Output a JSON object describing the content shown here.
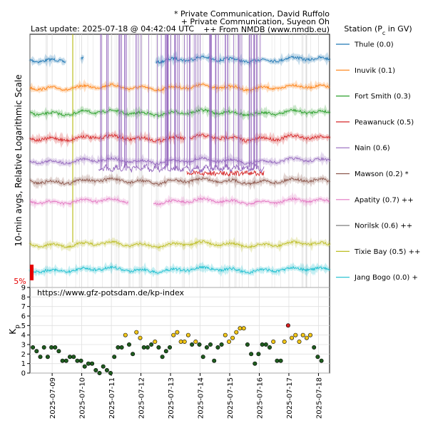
{
  "header": {
    "last_update": "Last update: 2025-07-18 @ 04:42:04 UTC",
    "credit_lines": [
      "* Private Communication, David Ruffolo",
      "+ Private Communication, Suyeon Oh",
      "++ From NMDB (www.nmdb.eu)"
    ]
  },
  "chart_data": [
    {
      "type": "line",
      "ylabel": "10-min avgs, Relative Logarithmic Scale",
      "scale_bar_label": "5%",
      "legend_title": "Station (Pc in GV)",
      "legend_placement": "right",
      "grid": true,
      "x_range": [
        "2025-07-08T06:00",
        "2025-07-18T09:00"
      ],
      "series": [
        {
          "name": "Thule (0.0)",
          "color": "#1f77b4",
          "level": 0.9,
          "noise": 0.01,
          "gaps": [
            [
              0.12,
              0.17
            ],
            [
              0.18,
              0.42
            ]
          ]
        },
        {
          "name": "Inuvik (0.1)",
          "color": "#ff7f0e",
          "level": 0.79,
          "noise": 0.008,
          "gaps": []
        },
        {
          "name": "Fort Smith (0.3)",
          "color": "#2ca02c",
          "level": 0.69,
          "noise": 0.009,
          "gaps": []
        },
        {
          "name": "Peawanuck (0.5)",
          "color": "#d62728",
          "level": 0.59,
          "noise": 0.011,
          "gaps": [
            [
              0.52,
              0.53
            ]
          ]
        },
        {
          "name": "Nain (0.6)",
          "color": "#9467bd",
          "level": 0.5,
          "noise": 0.009,
          "gaps": []
        },
        {
          "name": "Mawson (0.2) *",
          "color": "#8c564b",
          "level": 0.42,
          "noise": 0.01,
          "gaps": []
        },
        {
          "name": "Apatity (0.7) ++",
          "color": "#e377c2",
          "level": 0.34,
          "noise": 0.008,
          "gaps": [
            [
              0.33,
              0.41
            ]
          ]
        },
        {
          "name": "Norilsk (0.6) ++",
          "color": "#7f7f7f",
          "level": 0.26,
          "noise": 0.006,
          "gaps": [
            [
              0.0,
              1.0
            ]
          ]
        },
        {
          "name": "Tixie Bay (0.5) ++",
          "color": "#bcbd22",
          "level": 0.17,
          "noise": 0.008,
          "gaps": []
        },
        {
          "name": "Jang Bogo (0.0) +",
          "color": "#17becf",
          "level": 0.07,
          "noise": 0.009,
          "gaps": []
        }
      ]
    },
    {
      "type": "scatter",
      "title": "https://www.gfz-potsdam.de/kp-index",
      "ylabel": "Kp",
      "ylim": [
        0,
        9
      ],
      "yticks": [
        0,
        1,
        2,
        3,
        4,
        5,
        6,
        7,
        8,
        9
      ],
      "xticks": [
        "2025-07-09",
        "2025-07-10",
        "2025-07-11",
        "2025-07-12",
        "2025-07-13",
        "2025-07-14",
        "2025-07-15",
        "2025-07-16",
        "2025-07-17",
        "2025-07-18"
      ],
      "x_range": [
        "2025-07-08T06:00",
        "2025-07-18T09:00"
      ],
      "color_key": {
        "low": "#1e5c1e",
        "mid": "#f2c618",
        "high": "#d62020"
      },
      "points": [
        {
          "t": 0.1,
          "kp": 2.7
        },
        {
          "t": 0.225,
          "kp": 2.3
        },
        {
          "t": 0.35,
          "kp": 1.7
        },
        {
          "t": 0.475,
          "kp": 2.7
        },
        {
          "t": 0.6,
          "kp": 1.7
        },
        {
          "t": 0.725,
          "kp": 2.7
        },
        {
          "t": 0.85,
          "kp": 2.7
        },
        {
          "t": 0.975,
          "kp": 2.3
        },
        {
          "t": 1.1,
          "kp": 1.3
        },
        {
          "t": 1.225,
          "kp": 1.3
        },
        {
          "t": 1.35,
          "kp": 1.7
        },
        {
          "t": 1.475,
          "kp": 1.7
        },
        {
          "t": 1.6,
          "kp": 1.3
        },
        {
          "t": 1.725,
          "kp": 1.3
        },
        {
          "t": 1.85,
          "kp": 0.7
        },
        {
          "t": 1.975,
          "kp": 1.0
        },
        {
          "t": 2.1,
          "kp": 1.0
        },
        {
          "t": 2.225,
          "kp": 0.3
        },
        {
          "t": 2.35,
          "kp": 0.0
        },
        {
          "t": 2.475,
          "kp": 0.7
        },
        {
          "t": 2.6,
          "kp": 0.3
        },
        {
          "t": 2.725,
          "kp": 0.0
        },
        {
          "t": 2.85,
          "kp": 1.7
        },
        {
          "t": 2.975,
          "kp": 2.7
        },
        {
          "t": 3.1,
          "kp": 2.7
        },
        {
          "t": 3.225,
          "kp": 4.0
        },
        {
          "t": 3.35,
          "kp": 3.0
        },
        {
          "t": 3.475,
          "kp": 2.0
        },
        {
          "t": 3.6,
          "kp": 4.3
        },
        {
          "t": 3.725,
          "kp": 3.7
        },
        {
          "t": 3.85,
          "kp": 2.7
        },
        {
          "t": 3.975,
          "kp": 2.7
        },
        {
          "t": 4.1,
          "kp": 3.0
        },
        {
          "t": 4.225,
          "kp": 3.3
        },
        {
          "t": 4.35,
          "kp": 2.7
        },
        {
          "t": 4.475,
          "kp": 1.7
        },
        {
          "t": 4.6,
          "kp": 2.3
        },
        {
          "t": 4.725,
          "kp": 2.7
        },
        {
          "t": 4.85,
          "kp": 4.0
        },
        {
          "t": 4.975,
          "kp": 4.3
        },
        {
          "t": 5.1,
          "kp": 3.3
        },
        {
          "t": 5.225,
          "kp": 3.3
        },
        {
          "t": 5.35,
          "kp": 4.0
        },
        {
          "t": 5.475,
          "kp": 3.0
        },
        {
          "t": 5.6,
          "kp": 3.3
        },
        {
          "t": 5.725,
          "kp": 3.0
        },
        {
          "t": 5.85,
          "kp": 1.7
        },
        {
          "t": 5.975,
          "kp": 2.7
        },
        {
          "t": 6.1,
          "kp": 3.0
        },
        {
          "t": 6.225,
          "kp": 1.3
        },
        {
          "t": 6.35,
          "kp": 2.7
        },
        {
          "t": 6.475,
          "kp": 3.0
        },
        {
          "t": 6.6,
          "kp": 4.0
        },
        {
          "t": 6.725,
          "kp": 3.3
        },
        {
          "t": 6.85,
          "kp": 3.7
        },
        {
          "t": 6.975,
          "kp": 4.3
        },
        {
          "t": 7.1,
          "kp": 4.7
        },
        {
          "t": 7.225,
          "kp": 4.7
        },
        {
          "t": 7.35,
          "kp": 3.0
        },
        {
          "t": 7.475,
          "kp": 2.0
        },
        {
          "t": 7.6,
          "kp": 1.0
        },
        {
          "t": 7.725,
          "kp": 2.0
        },
        {
          "t": 7.85,
          "kp": 3.0
        },
        {
          "t": 7.975,
          "kp": 3.0
        },
        {
          "t": 8.1,
          "kp": 2.7
        },
        {
          "t": 8.225,
          "kp": 3.3
        },
        {
          "t": 8.35,
          "kp": 1.3
        },
        {
          "t": 8.475,
          "kp": 1.3
        },
        {
          "t": 8.6,
          "kp": 3.3
        },
        {
          "t": 8.725,
          "kp": 5.0
        },
        {
          "t": 8.85,
          "kp": 3.7
        },
        {
          "t": 8.975,
          "kp": 4.0
        },
        {
          "t": 9.1,
          "kp": 3.3
        },
        {
          "t": 9.225,
          "kp": 4.0
        },
        {
          "t": 9.35,
          "kp": 3.7
        },
        {
          "t": 9.475,
          "kp": 4.0
        },
        {
          "t": 9.6,
          "kp": 2.7
        },
        {
          "t": 9.725,
          "kp": 1.7
        },
        {
          "t": 9.85,
          "kp": 1.3
        }
      ]
    }
  ]
}
